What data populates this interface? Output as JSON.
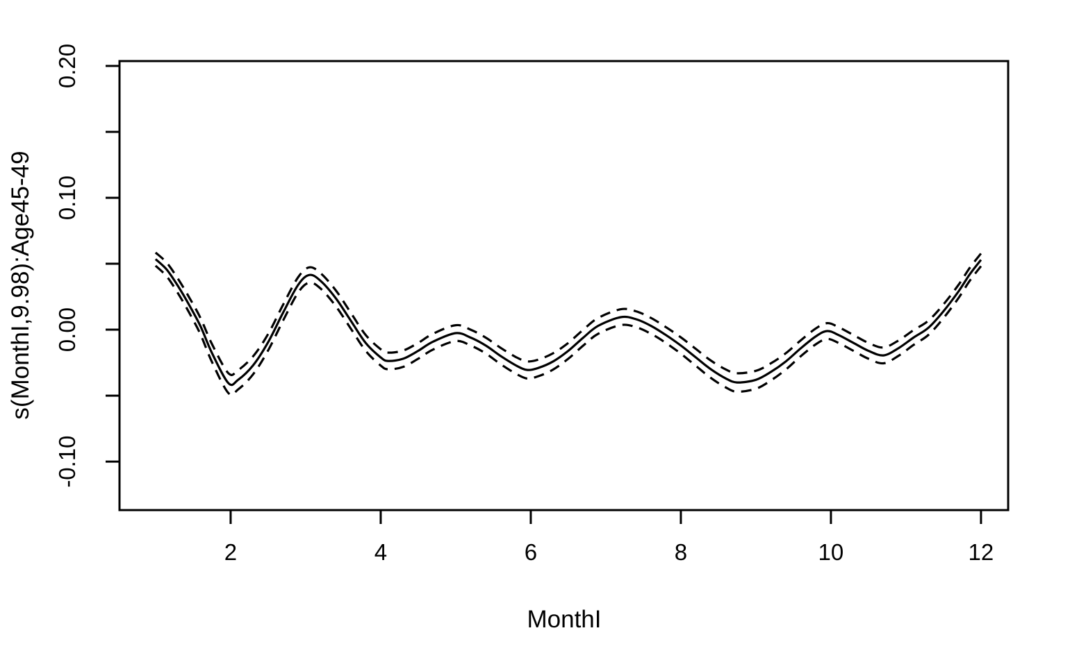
{
  "figure": {
    "background_color": "#ffffff",
    "line_color": "#000000"
  },
  "chart_data": {
    "type": "line",
    "title": "",
    "xlabel": "MonthI",
    "ylabel": "s(MonthI,9.98):Age45-49",
    "xlim": [
      0.519,
      12.362
    ],
    "ylim": [
      -0.1368,
      0.2037
    ],
    "grid": false,
    "legend_position": "none",
    "x_ticks": {
      "values": [
        2,
        4,
        6,
        8,
        10,
        12
      ],
      "labels": [
        "2",
        "4",
        "6",
        "8",
        "10",
        "12"
      ]
    },
    "y_ticks": {
      "values": [
        -0.1,
        -0.05,
        0.0,
        0.05,
        0.1,
        0.15,
        0.2
      ],
      "labels": [
        "-0.10",
        "",
        "0.00",
        "",
        "0.10",
        "",
        "0.20"
      ]
    },
    "x": [
      1.0,
      1.15,
      1.3,
      1.45,
      1.6,
      1.75,
      1.97,
      2.1,
      2.3,
      2.5,
      2.7,
      2.9,
      3.05,
      3.2,
      3.4,
      3.6,
      3.8,
      4.0,
      4.1,
      4.3,
      4.5,
      4.7,
      5.0,
      5.2,
      5.4,
      5.6,
      5.8,
      5.95,
      6.1,
      6.3,
      6.5,
      6.7,
      6.9,
      7.2,
      7.4,
      7.6,
      7.8,
      8.0,
      8.2,
      8.4,
      8.6,
      8.75,
      9.0,
      9.2,
      9.4,
      9.6,
      9.8,
      9.95,
      10.1,
      10.3,
      10.5,
      10.7,
      10.9,
      11.1,
      11.3,
      11.5,
      11.7,
      11.85,
      12.0
    ],
    "series": [
      {
        "name": "smooth-fit",
        "style": "solid",
        "values": [
          0.0535,
          0.0455,
          0.033,
          0.0185,
          0.0025,
          -0.0175,
          -0.0405,
          -0.038,
          -0.027,
          -0.0095,
          0.013,
          0.034,
          0.0415,
          0.037,
          0.024,
          0.007,
          -0.01,
          -0.021,
          -0.0237,
          -0.022,
          -0.016,
          -0.009,
          -0.0026,
          -0.006,
          -0.012,
          -0.02,
          -0.027,
          -0.0305,
          -0.029,
          -0.024,
          -0.016,
          -0.006,
          0.003,
          0.0095,
          0.008,
          0.003,
          -0.004,
          -0.012,
          -0.021,
          -0.03,
          -0.037,
          -0.04,
          -0.038,
          -0.032,
          -0.024,
          -0.014,
          -0.005,
          -0.001,
          -0.004,
          -0.01,
          -0.016,
          -0.0195,
          -0.014,
          -0.006,
          0.0015,
          0.014,
          0.029,
          0.042,
          0.053
        ]
      },
      {
        "name": "ci-upper",
        "style": "dashed",
        "values": [
          0.0585,
          0.0507,
          0.0385,
          0.0243,
          0.0087,
          -0.0107,
          -0.033,
          -0.0307,
          -0.0202,
          -0.0033,
          0.019,
          0.0398,
          0.0473,
          0.0428,
          0.03,
          0.013,
          -0.004,
          -0.0148,
          -0.0174,
          -0.0158,
          -0.01,
          -0.003,
          0.0034,
          0.0,
          -0.006,
          -0.0138,
          -0.0207,
          -0.024,
          -0.0227,
          -0.0178,
          -0.01,
          0.0,
          0.009,
          0.0155,
          0.014,
          0.009,
          0.002,
          -0.0058,
          -0.0146,
          -0.0234,
          -0.0302,
          -0.033,
          -0.0312,
          -0.0255,
          -0.0178,
          -0.008,
          0.001,
          0.005,
          0.002,
          -0.004,
          -0.01,
          -0.0135,
          -0.0082,
          -0.0004,
          0.0069,
          0.0192,
          0.034,
          0.0469,
          0.0578
        ]
      },
      {
        "name": "ci-lower",
        "style": "dashed",
        "values": [
          0.0485,
          0.0403,
          0.0275,
          0.0127,
          -0.0037,
          -0.0243,
          -0.048,
          -0.0453,
          -0.0338,
          -0.0157,
          0.007,
          0.0282,
          0.0357,
          0.0312,
          0.018,
          0.001,
          -0.016,
          -0.0272,
          -0.03,
          -0.0282,
          -0.022,
          -0.015,
          -0.0086,
          -0.012,
          -0.018,
          -0.0262,
          -0.0333,
          -0.037,
          -0.0353,
          -0.0302,
          -0.022,
          -0.012,
          -0.003,
          0.0035,
          0.002,
          -0.003,
          -0.01,
          -0.0182,
          -0.0274,
          -0.0366,
          -0.0438,
          -0.047,
          -0.0448,
          -0.0385,
          -0.0302,
          -0.02,
          -0.011,
          -0.007,
          -0.01,
          -0.016,
          -0.022,
          -0.0255,
          -0.0198,
          -0.0116,
          -0.0039,
          0.0088,
          0.024,
          0.0371,
          0.0482
        ]
      }
    ]
  }
}
